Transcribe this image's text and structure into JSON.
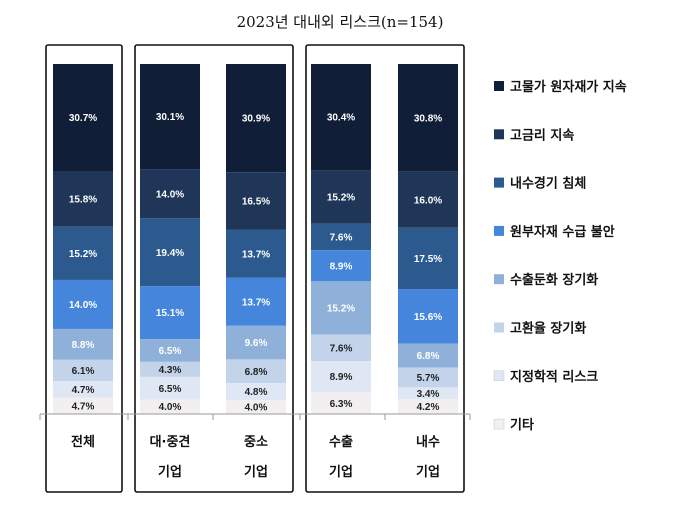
{
  "chart_data": {
    "type": "bar",
    "stacked": true,
    "normalized_percent": true,
    "title": "2023년 대내외 리스크(n=154)",
    "categories": [
      {
        "line1": "전체",
        "line2": ""
      },
      {
        "line1": "대·중견",
        "line2": "기업"
      },
      {
        "line1": "중소",
        "line2": "기업"
      },
      {
        "line1": "수출",
        "line2": "기업"
      },
      {
        "line1": "내수",
        "line2": "기업"
      }
    ],
    "groups": [
      [
        0
      ],
      [
        1,
        2
      ],
      [
        3,
        4
      ]
    ],
    "legend_position": "right",
    "series": [
      {
        "name": "고물가 원자재가 지속",
        "color": "#111e38",
        "label_color": "#ffffff",
        "values": [
          30.7,
          30.1,
          30.9,
          30.4,
          30.8
        ],
        "labels": [
          "30.7%",
          "30.1%",
          "30.9%",
          "30.4%",
          "30.8%"
        ]
      },
      {
        "name": "고금리 지속",
        "color": "#1f3658",
        "label_color": "#ffffff",
        "values": [
          15.8,
          14.0,
          16.5,
          15.2,
          16.0
        ],
        "labels": [
          "15.8%",
          "14.0%",
          "16.5%",
          "15.2%",
          "16.0%"
        ]
      },
      {
        "name": "내수경기 침체",
        "color": "#2c5a8f",
        "label_color": "#ffffff",
        "values": [
          15.2,
          19.4,
          13.7,
          7.6,
          17.5
        ],
        "labels": [
          "15.2%",
          "19.4%",
          "13.7%",
          "7.6%",
          "17.5%"
        ]
      },
      {
        "name": "원부자재 수급 불안",
        "color": "#4585dc",
        "label_color": "#ffffff",
        "values": [
          14.0,
          15.1,
          13.7,
          8.9,
          15.6
        ],
        "labels": [
          "14.0%",
          "15.1%",
          "13.7%",
          "8.9%",
          "15.6%"
        ]
      },
      {
        "name": "수출둔화 장기화",
        "color": "#8fb0d9",
        "label_color": "#ffffff",
        "values": [
          8.8,
          6.5,
          9.6,
          15.2,
          6.8
        ],
        "labels": [
          "8.8%",
          "6.5%",
          "9.6%",
          "15.2%",
          "6.8%"
        ]
      },
      {
        "name": "고환율 장기화",
        "color": "#c2d3ea",
        "label_color": "#222222",
        "values": [
          6.1,
          4.3,
          6.8,
          7.6,
          5.7
        ],
        "labels": [
          "6.1%",
          "4.3%",
          "6.8%",
          "7.6%",
          "5.7%"
        ]
      },
      {
        "name": "지정학적 리스크",
        "color": "#dfe7f4",
        "label_color": "#222222",
        "values": [
          4.7,
          6.5,
          4.8,
          8.9,
          3.4
        ],
        "labels": [
          "4.7%",
          "6.5%",
          "4.8%",
          "8.9%",
          "3.4%"
        ]
      },
      {
        "name": "기타",
        "color": "#f1eff0",
        "label_color": "#222222",
        "values": [
          4.7,
          4.0,
          4.0,
          6.3,
          4.2
        ],
        "labels": [
          "4.7%",
          "4.0%",
          "4.0%",
          "6.3%",
          "4.2%"
        ]
      }
    ],
    "ylim": [
      0,
      100
    ]
  }
}
